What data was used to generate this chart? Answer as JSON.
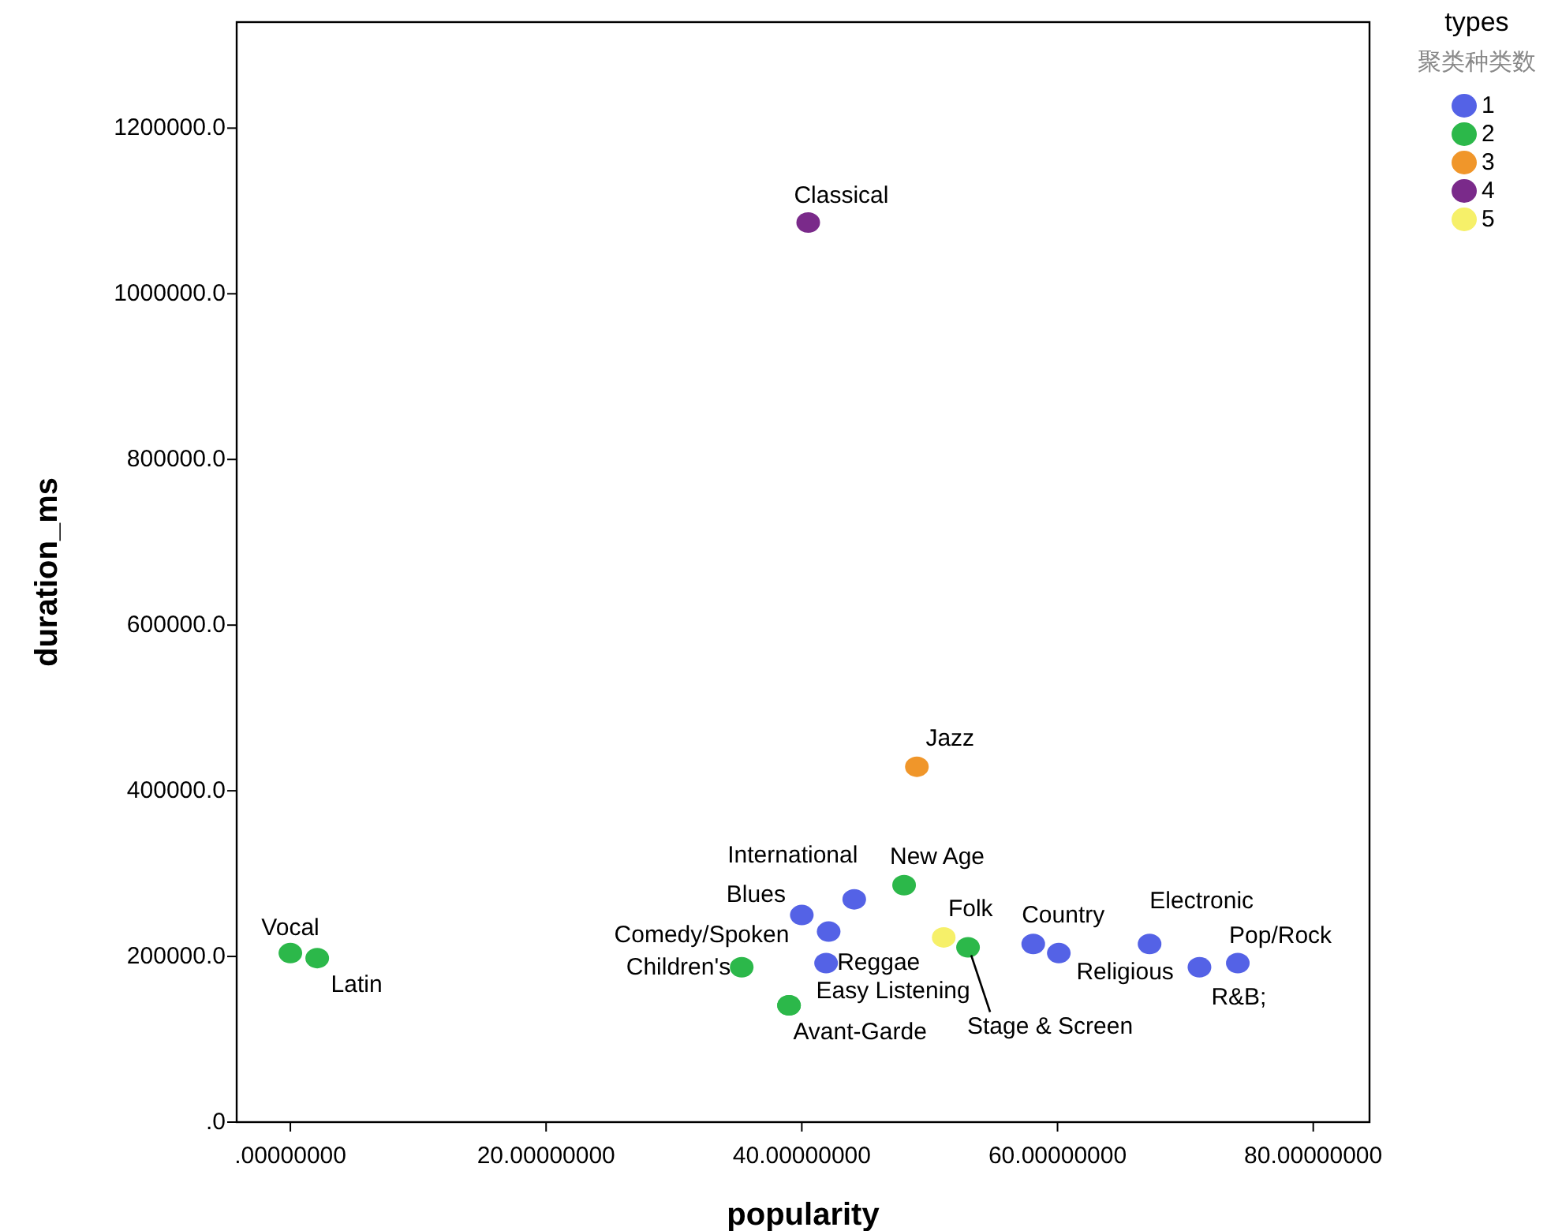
{
  "chart_data": {
    "type": "scatter",
    "xlabel": "popularity",
    "ylabel": "duration_ms",
    "legend_title": "types",
    "annotations": [
      "聚类种类数"
    ],
    "xlim": [
      -4.2,
      84.4
    ],
    "ylim": [
      0,
      1328000
    ],
    "xticks": [
      {
        "value": 0,
        "label": ".00000000"
      },
      {
        "value": 20,
        "label": "20.00000000"
      },
      {
        "value": 40,
        "label": "40.00000000"
      },
      {
        "value": 60,
        "label": "60.00000000"
      },
      {
        "value": 80,
        "label": "80.00000000"
      }
    ],
    "yticks": [
      {
        "value": 0,
        "label": ".0"
      },
      {
        "value": 200000,
        "label": "200000.0"
      },
      {
        "value": 400000,
        "label": "400000.0"
      },
      {
        "value": 600000,
        "label": "600000.0"
      },
      {
        "value": 800000,
        "label": "800000.0"
      },
      {
        "value": 1000000,
        "label": "1000000.0"
      },
      {
        "value": 1200000,
        "label": "1200000.0"
      }
    ],
    "legend": "top right",
    "marker": "circle",
    "grid": false,
    "series": [
      {
        "name": "1",
        "color": "#5462e6",
        "x": [
          40.0,
          44.1,
          42.1,
          41.9,
          58.1,
          60.1,
          67.2,
          71.1,
          74.1
        ],
        "values": [
          250000,
          269000,
          230000,
          192000,
          215000,
          204000,
          215000,
          187000,
          192000
        ],
        "value_labels": [
          "Blues",
          "International",
          "Comedy/Spoken",
          "Reggae",
          "Country",
          "Religious",
          "Electronic",
          "R&B;",
          "Pop/Rock"
        ]
      },
      {
        "name": "2",
        "color": "#2cb84a",
        "x": [
          0.0,
          2.1,
          35.3,
          39.0,
          39.0,
          48.0,
          53.0
        ],
        "values": [
          204000,
          198000,
          187000,
          141000,
          141000,
          286000,
          211000
        ],
        "value_labels": [
          "Vocal",
          "Latin",
          "Children's",
          "Avant-Garde",
          "Easy Listening",
          "New Age",
          "Stage & Screen"
        ]
      },
      {
        "name": "3",
        "color": "#f0962a",
        "x": [
          49.0
        ],
        "values": [
          429000
        ],
        "value_labels": [
          "Jazz"
        ]
      },
      {
        "name": "4",
        "color": "#7a2a8a",
        "x": [
          40.5
        ],
        "values": [
          1086000
        ],
        "value_labels": [
          "Classical"
        ]
      },
      {
        "name": "5",
        "color": "#f6f069",
        "x": [
          51.1
        ],
        "values": [
          223000
        ],
        "value_labels": [
          "Folk"
        ]
      }
    ]
  }
}
